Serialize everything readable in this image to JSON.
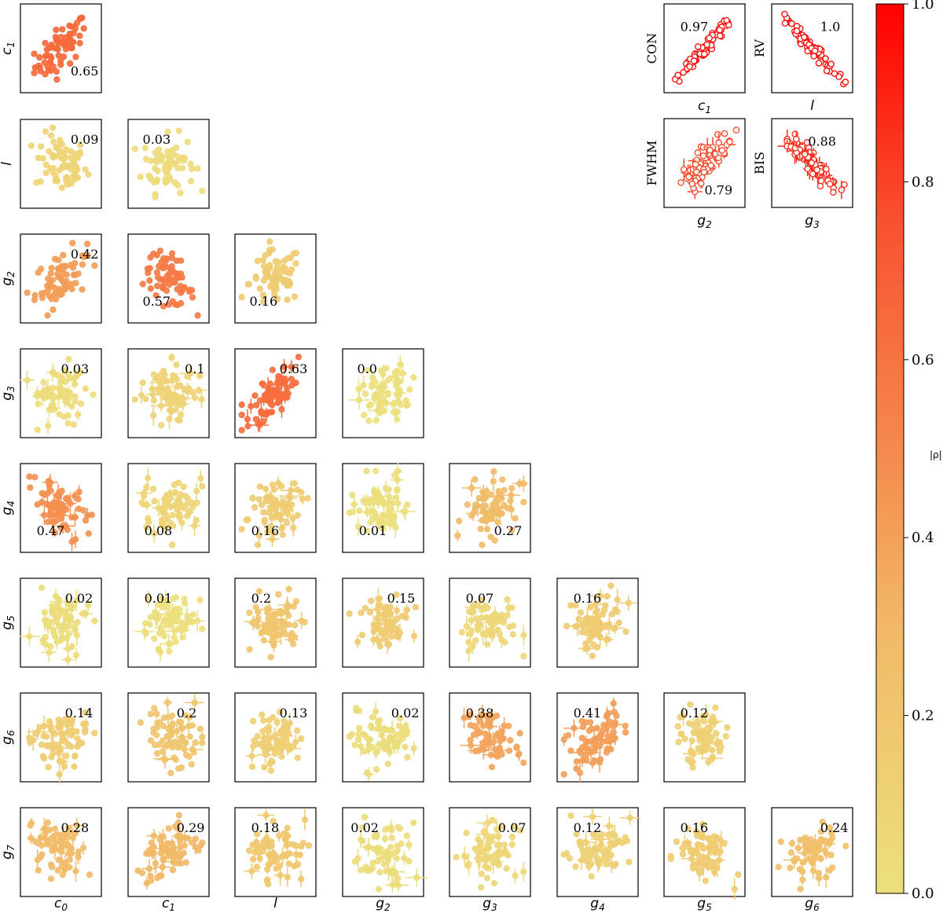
{
  "chart_data": {
    "type": "scatter",
    "description_of_layout": "lower-triangle corner plot of pairwise scatter panels colored by |rho|",
    "variables": [
      "c0",
      "c1",
      "l",
      "g2",
      "g3",
      "g4",
      "g5",
      "g6",
      "g7"
    ],
    "variable_labels": {
      "c0": {
        "base": "c",
        "sub": "0"
      },
      "c1": {
        "base": "c",
        "sub": "1"
      },
      "l": {
        "base": "l",
        "sub": ""
      },
      "g2": {
        "base": "g",
        "sub": "2"
      },
      "g3": {
        "base": "g",
        "sub": "3"
      },
      "g4": {
        "base": "g",
        "sub": "4"
      },
      "g5": {
        "base": "g",
        "sub": "5"
      },
      "g6": {
        "base": "g",
        "sub": "6"
      },
      "g7": {
        "base": "g",
        "sub": "7"
      }
    },
    "correlations": [
      {
        "x": "c0",
        "y": "c1",
        "rho": "0.65"
      },
      {
        "x": "c0",
        "y": "l",
        "rho": "0.09"
      },
      {
        "x": "c1",
        "y": "l",
        "rho": "0.03"
      },
      {
        "x": "c0",
        "y": "g2",
        "rho": "0.42"
      },
      {
        "x": "c1",
        "y": "g2",
        "rho": "0.57"
      },
      {
        "x": "l",
        "y": "g2",
        "rho": "0.16"
      },
      {
        "x": "c0",
        "y": "g3",
        "rho": "0.03"
      },
      {
        "x": "c1",
        "y": "g3",
        "rho": "0.1"
      },
      {
        "x": "l",
        "y": "g3",
        "rho": "0.63"
      },
      {
        "x": "g2",
        "y": "g3",
        "rho": "0.0"
      },
      {
        "x": "c0",
        "y": "g4",
        "rho": "0.47"
      },
      {
        "x": "c1",
        "y": "g4",
        "rho": "0.08"
      },
      {
        "x": "l",
        "y": "g4",
        "rho": "0.16"
      },
      {
        "x": "g2",
        "y": "g4",
        "rho": "0.01"
      },
      {
        "x": "g3",
        "y": "g4",
        "rho": "0.27"
      },
      {
        "x": "c0",
        "y": "g5",
        "rho": "0.02"
      },
      {
        "x": "c1",
        "y": "g5",
        "rho": "0.01"
      },
      {
        "x": "l",
        "y": "g5",
        "rho": "0.2"
      },
      {
        "x": "g2",
        "y": "g5",
        "rho": "0.15"
      },
      {
        "x": "g3",
        "y": "g5",
        "rho": "0.07"
      },
      {
        "x": "g4",
        "y": "g5",
        "rho": "0.16"
      },
      {
        "x": "c0",
        "y": "g6",
        "rho": "0.14"
      },
      {
        "x": "c1",
        "y": "g6",
        "rho": "0.2"
      },
      {
        "x": "l",
        "y": "g6",
        "rho": "0.13"
      },
      {
        "x": "g2",
        "y": "g6",
        "rho": "0.02"
      },
      {
        "x": "g3",
        "y": "g6",
        "rho": "0.38"
      },
      {
        "x": "g4",
        "y": "g6",
        "rho": "0.41"
      },
      {
        "x": "g5",
        "y": "g6",
        "rho": "0.12"
      },
      {
        "x": "c0",
        "y": "g7",
        "rho": "0.28"
      },
      {
        "x": "c1",
        "y": "g7",
        "rho": "0.29"
      },
      {
        "x": "l",
        "y": "g7",
        "rho": "0.18"
      },
      {
        "x": "g2",
        "y": "g7",
        "rho": "0.02"
      },
      {
        "x": "g3",
        "y": "g7",
        "rho": "0.07"
      },
      {
        "x": "g4",
        "y": "g7",
        "rho": "0.12"
      },
      {
        "x": "g5",
        "y": "g7",
        "rho": "0.16"
      },
      {
        "x": "g6",
        "y": "g7",
        "rho": "0.24"
      }
    ],
    "inset_panels": [
      {
        "x": "c1",
        "y_label": "CON",
        "rho": "0.97"
      },
      {
        "x": "l",
        "y_label": "RV",
        "rho": "1.0"
      },
      {
        "x": "g2",
        "y_label": "FWHM",
        "rho": "0.79"
      },
      {
        "x": "g3",
        "y_label": "BIS",
        "rho": "0.88"
      }
    ],
    "colorbar": {
      "title": "|ρ|",
      "range": [
        0.0,
        1.0
      ],
      "ticks": [
        "0.0",
        "0.2",
        "0.4",
        "0.6",
        "0.8",
        "1.0"
      ],
      "colors": {
        "low": "#ece07e",
        "mid": "#f5a05a",
        "high": "#ff0000"
      }
    }
  }
}
